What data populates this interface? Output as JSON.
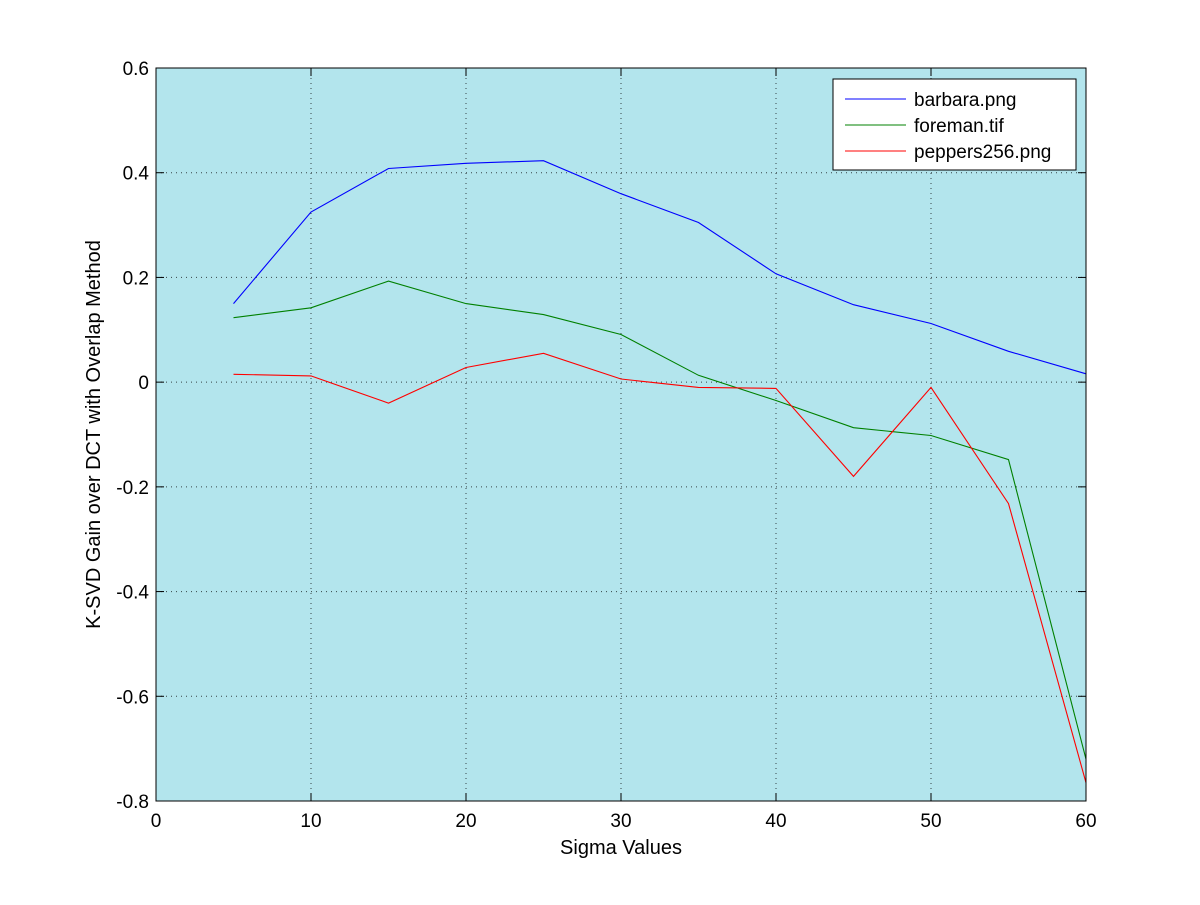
{
  "chart_data": {
    "type": "line",
    "title": "",
    "xlabel": "Sigma Values",
    "ylabel": "K-SVD Gain over DCT with Overlap Method",
    "xlim": [
      0,
      60
    ],
    "ylim": [
      -0.8,
      0.6
    ],
    "xticks": [
      0,
      10,
      20,
      30,
      40,
      50,
      60
    ],
    "yticks": [
      -0.8,
      -0.6,
      -0.4,
      -0.2,
      0,
      0.2,
      0.4,
      0.6
    ],
    "xtick_labels": [
      "0",
      "10",
      "20",
      "30",
      "40",
      "50",
      "60"
    ],
    "ytick_labels": [
      "-0.8",
      "-0.6",
      "-0.4",
      "-0.2",
      "0",
      "0.2",
      "0.4",
      "0.6"
    ],
    "grid": true,
    "legend_position": "top-right",
    "plot_background": "#b3e5ed",
    "x": [
      5,
      10,
      15,
      20,
      25,
      30,
      35,
      40,
      45,
      50,
      55,
      60
    ],
    "series": [
      {
        "name": "barbara.png",
        "color": "#0000ff",
        "values": [
          0.15,
          0.325,
          0.408,
          0.418,
          0.423,
          0.36,
          0.305,
          0.207,
          0.148,
          0.112,
          0.059,
          0.016
        ]
      },
      {
        "name": "foreman.tif",
        "color": "#008000",
        "values": [
          0.123,
          0.142,
          0.193,
          0.15,
          0.129,
          0.091,
          0.013,
          -0.035,
          -0.087,
          -0.102,
          -0.148,
          -0.72
        ]
      },
      {
        "name": "peppers256.png",
        "color": "#ff0000",
        "values": [
          0.015,
          0.012,
          -0.04,
          0.028,
          0.055,
          0.006,
          -0.01,
          -0.012,
          -0.18,
          -0.01,
          -0.232,
          -0.765
        ]
      }
    ]
  }
}
